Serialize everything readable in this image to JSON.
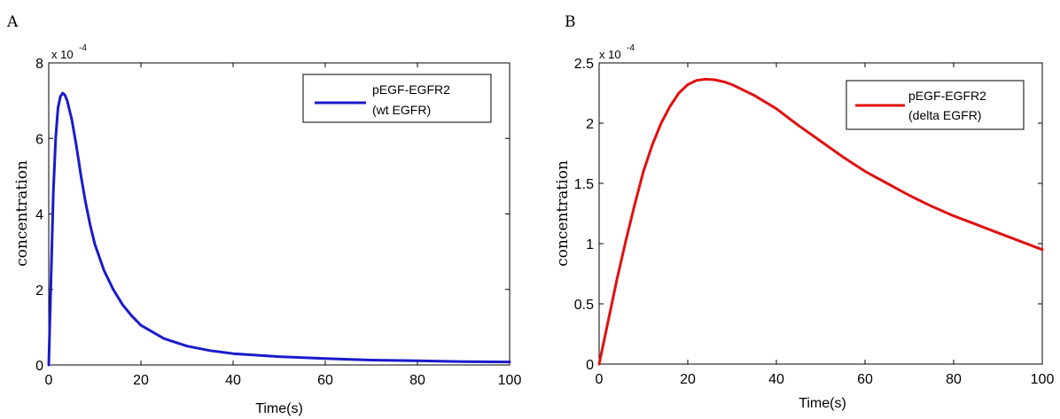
{
  "chart_data": [
    {
      "panel": "A",
      "type": "line",
      "xlabel": "Time(s)",
      "ylabel": "concentration",
      "scale_base": "x 10",
      "scale_exp": "-4",
      "xlim": [
        0,
        100
      ],
      "ylim": [
        0,
        8
      ],
      "xticks": [
        0,
        20,
        40,
        60,
        80,
        100
      ],
      "yticks": [
        0,
        2,
        4,
        6,
        8
      ],
      "legend_position": "top-right",
      "series": [
        {
          "name_lines": [
            "pEGF-EGFR2",
            "(wt EGFR)"
          ],
          "color": "#1a1acc",
          "x": [
            0,
            0.5,
            1,
            1.5,
            2,
            2.5,
            3,
            3.5,
            4,
            5,
            6,
            7,
            8,
            9,
            10,
            12,
            14,
            16,
            18,
            20,
            25,
            30,
            35,
            40,
            50,
            60,
            70,
            80,
            90,
            100
          ],
          "y": [
            0,
            2.3,
            4.6,
            6.0,
            6.8,
            7.1,
            7.2,
            7.15,
            7.0,
            6.5,
            5.8,
            5.0,
            4.3,
            3.7,
            3.2,
            2.5,
            2.0,
            1.6,
            1.3,
            1.05,
            0.7,
            0.5,
            0.38,
            0.3,
            0.22,
            0.17,
            0.13,
            0.11,
            0.09,
            0.08
          ]
        }
      ]
    },
    {
      "panel": "B",
      "type": "line",
      "xlabel": "Time(s)",
      "ylabel": "concentration",
      "scale_base": "x 10",
      "scale_exp": "-4",
      "xlim": [
        0,
        100
      ],
      "ylim": [
        0,
        2.5
      ],
      "xticks": [
        0,
        20,
        40,
        60,
        80,
        100
      ],
      "yticks": [
        0,
        0.5,
        1,
        1.5,
        2,
        2.5
      ],
      "legend_position": "top-right",
      "series": [
        {
          "name_lines": [
            "pEGF-EGFR2",
            "(delta EGFR)"
          ],
          "color": "#e01010",
          "x": [
            0,
            2,
            4,
            6,
            8,
            10,
            12,
            14,
            16,
            18,
            20,
            22,
            24,
            26,
            28,
            30,
            35,
            40,
            45,
            50,
            55,
            60,
            65,
            70,
            75,
            80,
            85,
            90,
            95,
            100
          ],
          "y": [
            0,
            0.35,
            0.7,
            1.02,
            1.32,
            1.6,
            1.82,
            2.0,
            2.14,
            2.25,
            2.32,
            2.355,
            2.365,
            2.36,
            2.345,
            2.32,
            2.23,
            2.12,
            1.98,
            1.85,
            1.72,
            1.6,
            1.5,
            1.4,
            1.31,
            1.23,
            1.16,
            1.09,
            1.02,
            0.95
          ]
        }
      ]
    }
  ]
}
